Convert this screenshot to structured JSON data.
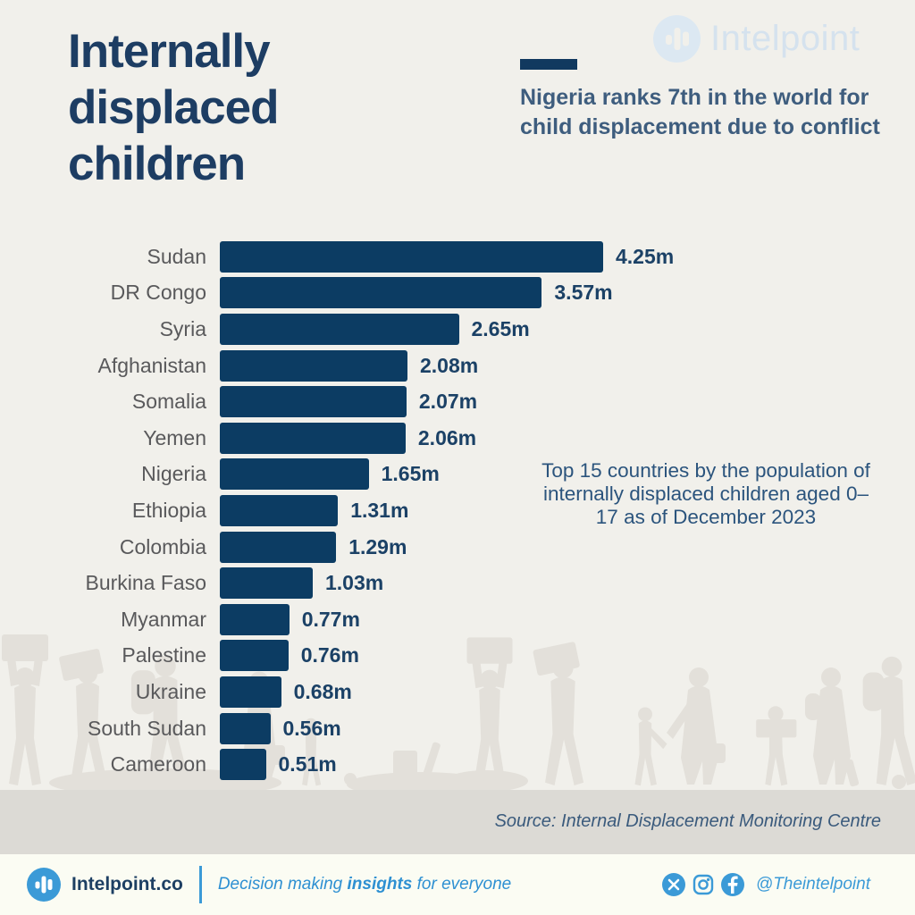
{
  "page": {
    "title": "Internally displaced children",
    "watermark_brand": "Intelpoint"
  },
  "callout": {
    "text": "Nigeria ranks 7th in the world for child displacement due to conflict"
  },
  "chart_data": {
    "type": "bar",
    "orientation": "horizontal",
    "title": "Internally displaced children",
    "categories": [
      "Sudan",
      "DR Congo",
      "Syria",
      "Afghanistan",
      "Somalia",
      "Yemen",
      "Nigeria",
      "Ethiopia",
      "Colombia",
      "Burkina Faso",
      "Myanmar",
      "Palestine",
      "Ukraine",
      "South Sudan",
      "Cameroon"
    ],
    "values": [
      4.25,
      3.57,
      2.65,
      2.08,
      2.07,
      2.06,
      1.65,
      1.31,
      1.29,
      1.03,
      0.77,
      0.76,
      0.68,
      0.56,
      0.51
    ],
    "value_labels": [
      "4.25m",
      "3.57m",
      "2.65m",
      "2.08m",
      "2.07m",
      "2.06m",
      "1.65m",
      "1.31m",
      "1.29m",
      "1.03m",
      "0.77m",
      "0.76m",
      "0.68m",
      "0.56m",
      "0.51m"
    ],
    "unit": "millions of children",
    "xlim": [
      0,
      4.25
    ],
    "grid": false,
    "legend": false,
    "annotation": "Top 15 countries by the population of internally displaced children aged 0–17 as of December 2023",
    "bar_color": "#0c3c63"
  },
  "source": {
    "text": "Source: Internal Displacement Monitoring Centre"
  },
  "footer": {
    "brand": "Intelpoint.co",
    "tagline": {
      "prefix": "Decision making ",
      "bold": "insights",
      "suffix": " for everyone"
    },
    "social_handle": "@Theintelpoint",
    "icons": [
      "x-icon",
      "instagram-icon",
      "facebook-icon"
    ]
  },
  "colors": {
    "background": "#f1f0eb",
    "bar": "#0c3c63",
    "title": "#1d3d63",
    "callout": "#3e5d7e",
    "category_label": "#59595b",
    "value_label": "#1b4166",
    "annotation": "#2b547d",
    "accent_blue": "#3b9ad7",
    "silhouette": "#e3e0da",
    "strip": "#dcdad5",
    "footer_bg": "#fbfcf3"
  }
}
